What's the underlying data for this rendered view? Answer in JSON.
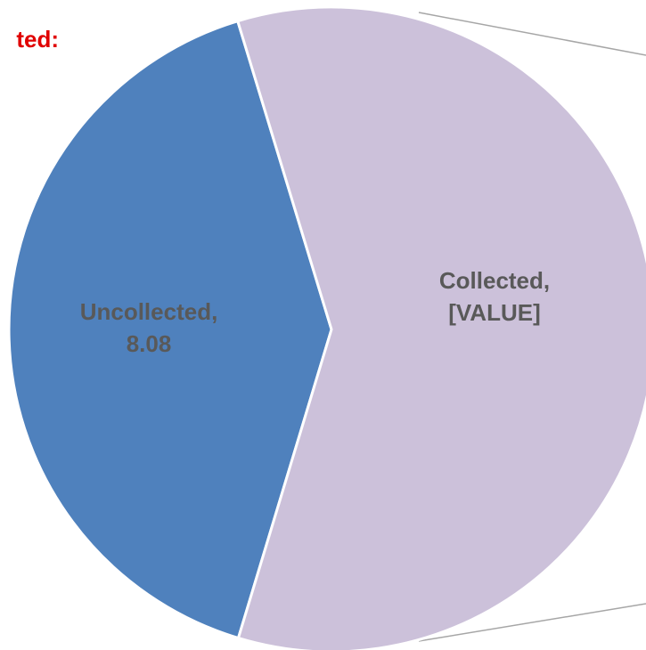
{
  "chart_data": {
    "type": "pie",
    "title": "ted:",
    "categories": [
      "Uncollected,",
      "Collected,"
    ],
    "values": [
      8.08,
      11.8
    ],
    "value_labels": [
      "8.08",
      "[VALUE]"
    ],
    "colors": [
      "#4f81bd",
      "#ccc1da"
    ]
  }
}
